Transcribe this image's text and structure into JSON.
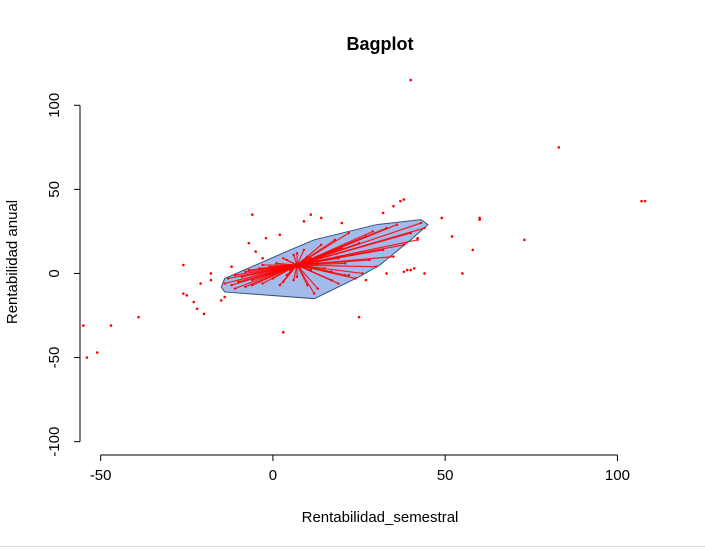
{
  "chart_data": {
    "type": "scatter",
    "title": "Bagplot",
    "xlabel": "Rentabilidad_semestral",
    "ylabel": "Rentabilidad anual",
    "xlim": [
      -56,
      108
    ],
    "ylim": [
      -102,
      118
    ],
    "x_ticks": [
      -50,
      0,
      50,
      100
    ],
    "y_ticks": [
      -100,
      -50,
      0,
      50,
      100
    ],
    "grid": false,
    "legend": "none",
    "colors": {
      "points": "#ff0000",
      "rays": "#ff0000",
      "bag_fill": "#a3bbeb",
      "bag_border": "#35507a",
      "loop_fill": "#a3bbeb",
      "axis": "#000000"
    },
    "center": [
      7,
      5
    ],
    "bag": [
      [
        -15,
        -8
      ],
      [
        -14,
        -3
      ],
      [
        -5,
        5
      ],
      [
        5,
        14
      ],
      [
        12,
        20
      ],
      [
        30,
        29
      ],
      [
        43,
        32
      ],
      [
        45,
        29
      ],
      [
        40,
        20
      ],
      [
        31,
        5
      ],
      [
        25,
        -2
      ],
      [
        12,
        -15
      ],
      [
        -14,
        -11
      ]
    ],
    "inner_points": [
      [
        -14,
        -6
      ],
      [
        -13,
        -3
      ],
      [
        -12,
        -7
      ],
      [
        -11,
        -1
      ],
      [
        -10,
        -5
      ],
      [
        -9,
        -2
      ],
      [
        -8,
        -8
      ],
      [
        -7,
        2
      ],
      [
        -6,
        -4
      ],
      [
        -5,
        0
      ],
      [
        -4,
        3
      ],
      [
        -3,
        -6
      ],
      [
        -2,
        -1
      ],
      [
        -1,
        4
      ],
      [
        0,
        -3
      ],
      [
        1,
        6
      ],
      [
        2,
        1
      ],
      [
        3,
        -5
      ],
      [
        4,
        8
      ],
      [
        5,
        2
      ],
      [
        6,
        11
      ],
      [
        7,
        -2
      ],
      [
        8,
        4
      ],
      [
        9,
        14
      ],
      [
        10,
        -7
      ],
      [
        11,
        9
      ],
      [
        12,
        -12
      ],
      [
        13,
        6
      ],
      [
        14,
        17
      ],
      [
        15,
        3
      ],
      [
        16,
        12
      ],
      [
        17,
        -4
      ],
      [
        18,
        20
      ],
      [
        19,
        9
      ],
      [
        20,
        15
      ],
      [
        21,
        -1
      ],
      [
        22,
        24
      ],
      [
        23,
        11
      ],
      [
        24,
        -3
      ],
      [
        25,
        18
      ],
      [
        26,
        0
      ],
      [
        27,
        22
      ],
      [
        28,
        8
      ],
      [
        29,
        25
      ],
      [
        30,
        4
      ],
      [
        32,
        14
      ],
      [
        33,
        27
      ],
      [
        35,
        10
      ],
      [
        36,
        29
      ],
      [
        38,
        17
      ],
      [
        40,
        24
      ],
      [
        42,
        20
      ],
      [
        43,
        30
      ],
      [
        44,
        27
      ],
      [
        -8,
        1
      ],
      [
        -3,
        5
      ],
      [
        2,
        -7
      ],
      [
        6,
        -4
      ],
      [
        10,
        10
      ],
      [
        13,
        -9
      ],
      [
        3,
        9
      ],
      [
        -6,
        -7
      ],
      [
        17,
        1
      ],
      [
        21,
        6
      ],
      [
        -11,
        -9
      ],
      [
        19,
        -6
      ],
      [
        11,
        2
      ],
      [
        7,
        12
      ],
      [
        4,
        -1
      ],
      [
        0,
        2
      ]
    ],
    "outer_points": [
      [
        -55,
        -31
      ],
      [
        -54,
        -50
      ],
      [
        -51,
        -47
      ],
      [
        -47,
        -31
      ],
      [
        -39,
        -26
      ],
      [
        -26,
        5
      ],
      [
        -26,
        -12
      ],
      [
        -25,
        -13
      ],
      [
        -23,
        -17
      ],
      [
        -22,
        -21
      ],
      [
        -21,
        -6
      ],
      [
        -20,
        -24
      ],
      [
        -18,
        -4
      ],
      [
        -18,
        0
      ],
      [
        -15,
        -16
      ],
      [
        -14,
        -14
      ],
      [
        -12,
        4
      ],
      [
        -7,
        18
      ],
      [
        -6,
        35
      ],
      [
        -5,
        13
      ],
      [
        -3,
        9
      ],
      [
        -2,
        21
      ],
      [
        2,
        23
      ],
      [
        3,
        -35
      ],
      [
        9,
        31
      ],
      [
        11,
        35
      ],
      [
        14,
        33
      ],
      [
        20,
        30
      ],
      [
        22,
        -1
      ],
      [
        25,
        -26
      ],
      [
        27,
        -4
      ],
      [
        32,
        36
      ],
      [
        33,
        0
      ],
      [
        35,
        40
      ],
      [
        37,
        43
      ],
      [
        38,
        44
      ],
      [
        38,
        1
      ],
      [
        39,
        2
      ],
      [
        40,
        2
      ],
      [
        41,
        3
      ],
      [
        42,
        21
      ],
      [
        44,
        0
      ],
      [
        49,
        33
      ],
      [
        52,
        22
      ],
      [
        55,
        0
      ],
      [
        58,
        14
      ],
      [
        60,
        33
      ],
      [
        60,
        32
      ],
      [
        73,
        20
      ],
      [
        83,
        75
      ],
      [
        40,
        115
      ],
      [
        107,
        43
      ],
      [
        108,
        43
      ]
    ]
  }
}
